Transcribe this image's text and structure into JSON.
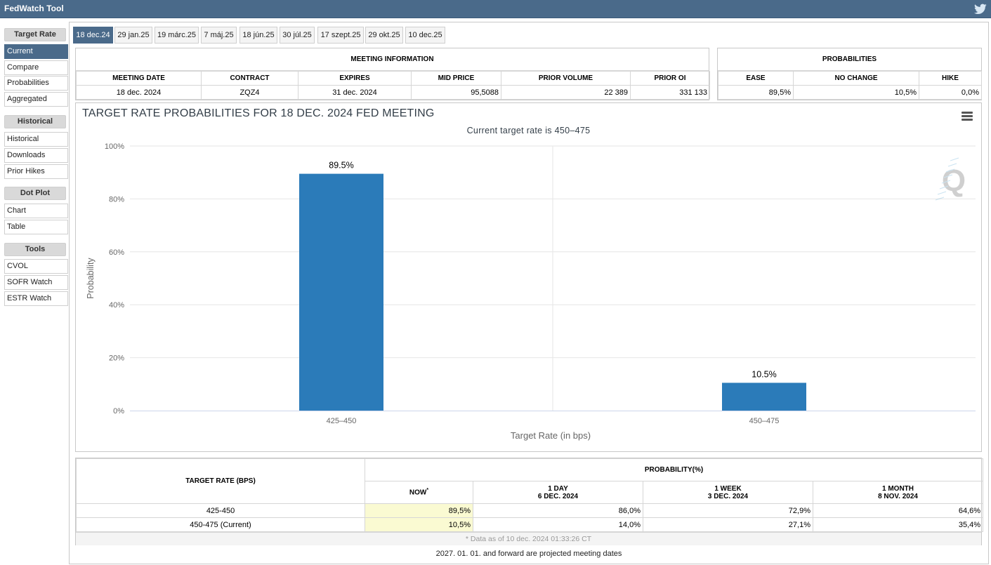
{
  "app": {
    "title": "FedWatch Tool"
  },
  "sidebar": {
    "groups": [
      {
        "label": "Target Rate",
        "items": [
          "Current",
          "Compare",
          "Probabilities",
          "Aggregated"
        ]
      },
      {
        "label": "Historical",
        "items": [
          "Historical",
          "Downloads",
          "Prior Hikes"
        ]
      },
      {
        "label": "Dot Plot",
        "items": [
          "Chart",
          "Table"
        ]
      },
      {
        "label": "Tools",
        "items": [
          "CVOL",
          "SOFR Watch",
          "ESTR Watch"
        ]
      }
    ],
    "active_item": "Current"
  },
  "tabs": [
    "18 dec.24",
    "29 jan.25",
    "19 márc.25",
    "7 máj.25",
    "18 jún.25",
    "30 júl.25",
    "17 szept.25",
    "29 okt.25",
    "10 dec.25"
  ],
  "active_tab": "18 dec.24",
  "meeting_info": {
    "header": "MEETING INFORMATION",
    "columns": [
      "MEETING DATE",
      "CONTRACT",
      "EXPIRES",
      "MID PRICE",
      "PRIOR VOLUME",
      "PRIOR OI"
    ],
    "row": [
      "18 dec. 2024",
      "ZQZ4",
      "31 dec. 2024",
      "95,5088",
      "22 389",
      "331 133"
    ]
  },
  "probabilities": {
    "header": "PROBABILITIES",
    "columns": [
      "EASE",
      "NO CHANGE",
      "HIKE"
    ],
    "row": [
      "89,5%",
      "10,5%",
      "0,0%"
    ]
  },
  "chart_data": {
    "type": "bar",
    "title": "TARGET RATE PROBABILITIES FOR 18 DEC. 2024 FED MEETING",
    "subtitle": "Current target rate is 450–475",
    "xlabel": "Target Rate (in bps)",
    "ylabel": "Probability",
    "categories": [
      "425–450",
      "450–475"
    ],
    "values": [
      89.5,
      10.5
    ],
    "data_labels": [
      "89.5%",
      "10.5%"
    ],
    "ylim": [
      0,
      100
    ],
    "yticks": [
      "0%",
      "20%",
      "40%",
      "60%",
      "80%",
      "100%"
    ],
    "grid": true,
    "legend": "none",
    "bar_color": "#2b7bb9"
  },
  "prob_table": {
    "col_target": "TARGET RATE (BPS)",
    "col_group": "PROBABILITY(%)",
    "sub_cols": [
      {
        "line1": "NOW",
        "line2": ""
      },
      {
        "line1": "1 DAY",
        "line2": "6 DEC. 2024"
      },
      {
        "line1": "1 WEEK",
        "line2": "3 DEC. 2024"
      },
      {
        "line1": "1 MONTH",
        "line2": "8 NOV. 2024"
      }
    ],
    "now_marker": "*",
    "rows": [
      {
        "rate": "425-450",
        "values": [
          "89,5%",
          "86,0%",
          "72,9%",
          "64,6%"
        ]
      },
      {
        "rate": "450-475 (Current)",
        "values": [
          "10,5%",
          "14,0%",
          "27,1%",
          "35,4%"
        ]
      }
    ],
    "note": "* Data as of 10 dec. 2024 01:33:26 CT"
  },
  "footer": "2027. 01. 01. and forward are projected meeting dates"
}
